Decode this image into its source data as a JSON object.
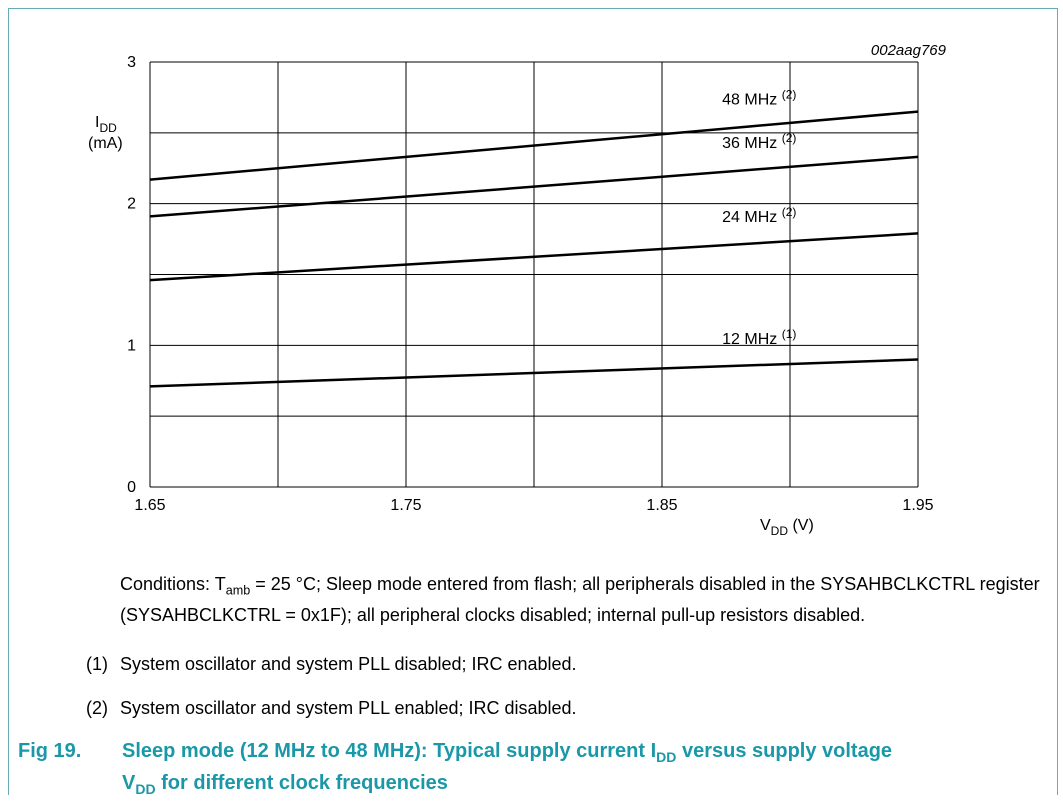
{
  "chart_data": {
    "type": "line",
    "id_label": "002aag769",
    "ylabel_main": "I",
    "ylabel_sub": "DD",
    "ylabel_unit": "(mA)",
    "xlabel_main": "V",
    "xlabel_sub": "DD",
    "xlabel_unit": " (V)",
    "xlim": [
      1.65,
      1.95
    ],
    "ylim": [
      0,
      3
    ],
    "xticks": [
      "1.65",
      "1.75",
      "1.85",
      "1.95"
    ],
    "yticks": [
      "0",
      "1",
      "2",
      "3"
    ],
    "grid": true,
    "series": [
      {
        "name": "48 MHz",
        "note": "(2)",
        "x": [
          1.65,
          1.95
        ],
        "y": [
          2.17,
          2.65
        ]
      },
      {
        "name": "36 MHz",
        "note": "(2)",
        "x": [
          1.65,
          1.95
        ],
        "y": [
          1.91,
          2.33
        ]
      },
      {
        "name": "24 MHz",
        "note": "(2)",
        "x": [
          1.65,
          1.95
        ],
        "y": [
          1.46,
          1.79
        ]
      },
      {
        "name": "12 MHz",
        "note": "(1)",
        "x": [
          1.65,
          1.95
        ],
        "y": [
          0.71,
          0.9
        ]
      }
    ]
  },
  "notes": {
    "conditions_prefix": "Conditions: T",
    "conditions_sub": "amb",
    "conditions_rest": " = 25 °C; Sleep mode entered from flash; all peripherals disabled in the SYSAHBCLKCTRL register (SYSAHBCLKCTRL = 0x1F); all peripheral clocks disabled; internal pull-up resistors disabled.",
    "footnotes": [
      {
        "num": "(1)",
        "text": "System oscillator and system PLL disabled; IRC enabled."
      },
      {
        "num": "(2)",
        "text": "System oscillator and system PLL enabled; IRC disabled."
      }
    ]
  },
  "caption": {
    "fig": "Fig 19.",
    "line1": "Sleep mode (12 MHz to 48 MHz): Typical supply current I",
    "line1_sub": "DD",
    "line1_rest": " versus supply voltage",
    "line2_main": "V",
    "line2_sub": "DD",
    "line2_rest": " for different clock frequencies"
  },
  "colors": {
    "caption": "#1a98a8",
    "frame": "#6aaab7",
    "grid": "#000000",
    "line": "#000000"
  }
}
